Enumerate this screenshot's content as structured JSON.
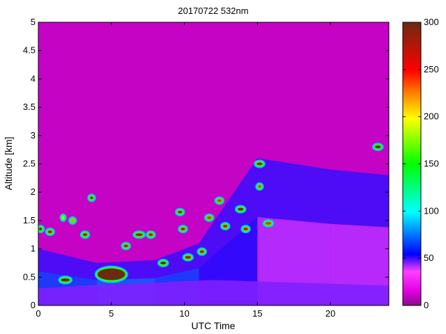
{
  "chart_data": {
    "type": "heatmap",
    "title": "20170722 532nm",
    "xlabel": "UTC Time",
    "ylabel": "Altitude [km]",
    "xlim": [
      0,
      24
    ],
    "ylim": [
      0,
      5
    ],
    "x_ticks": [
      0,
      5,
      10,
      15,
      20
    ],
    "x_tick_labels": [
      "0",
      "5",
      "10",
      "15",
      "20"
    ],
    "y_ticks": [
      0,
      0.5,
      1,
      1.5,
      2,
      2.5,
      3,
      3.5,
      4,
      4.5,
      5
    ],
    "y_tick_labels": [
      "0",
      "0.5",
      "1",
      "1.5",
      "2",
      "2.5",
      "3",
      "3.5",
      "4",
      "4.5",
      "5"
    ],
    "colorbar": {
      "range": [
        0,
        300
      ],
      "ticks": [
        0,
        50,
        100,
        150,
        200,
        250,
        300
      ],
      "tick_labels": [
        "0",
        "50",
        "100",
        "150",
        "200",
        "250",
        "300"
      ],
      "colormap": [
        "#8b0a8b",
        "#e000e0",
        "#ff40ff",
        "#0000ff",
        "#00ffff",
        "#00ff00",
        "#ffff00",
        "#ff8000",
        "#ff0000",
        "#6b2b10"
      ]
    },
    "grid": false,
    "background_level": 10,
    "boundary_layer": [
      {
        "x": 0,
        "top_km": 0.3,
        "value": 45
      },
      {
        "x": 3,
        "top_km": 0.35,
        "value": 45
      },
      {
        "x": 8,
        "top_km": 0.4,
        "value": 40
      },
      {
        "x": 12,
        "top_km": 0.45,
        "value": 35
      },
      {
        "x": 18,
        "top_km": 0.4,
        "value": 40
      },
      {
        "x": 24,
        "top_km": 0.35,
        "value": 40
      }
    ],
    "aerosol_layer": [
      {
        "x": 0,
        "top_km": 1.0,
        "value": 50
      },
      {
        "x": 4,
        "top_km": 0.75,
        "value": 70
      },
      {
        "x": 8,
        "top_km": 0.8,
        "value": 65
      },
      {
        "x": 11,
        "top_km": 1.1,
        "value": 55
      },
      {
        "x": 15,
        "top_km": 2.6,
        "value": 28
      },
      {
        "x": 20,
        "top_km": 2.4,
        "value": 25
      },
      {
        "x": 24,
        "top_km": 2.3,
        "value": 25
      }
    ],
    "cloud_features": [
      {
        "x_start": 0.0,
        "x_end": 0.3,
        "alt_km": 1.35,
        "value": 300
      },
      {
        "x_start": 0.6,
        "x_end": 1.0,
        "alt_km": 1.3,
        "value": 260
      },
      {
        "x_start": 1.5,
        "x_end": 2.2,
        "alt_km": 0.45,
        "value": 300
      },
      {
        "x_start": 1.6,
        "x_end": 1.8,
        "alt_km": 1.55,
        "value": 200
      },
      {
        "x_start": 2.2,
        "x_end": 2.5,
        "alt_km": 1.5,
        "value": 220
      },
      {
        "x_start": 3.0,
        "x_end": 3.4,
        "alt_km": 1.25,
        "value": 280
      },
      {
        "x_start": 3.5,
        "x_end": 3.8,
        "alt_km": 1.9,
        "value": 280
      },
      {
        "x_start": 4.0,
        "x_end": 6.0,
        "alt_km": 0.55,
        "value": 300
      },
      {
        "x_start": 5.8,
        "x_end": 6.2,
        "alt_km": 1.05,
        "value": 260
      },
      {
        "x_start": 6.6,
        "x_end": 7.2,
        "alt_km": 1.25,
        "value": 280
      },
      {
        "x_start": 7.5,
        "x_end": 7.9,
        "alt_km": 1.25,
        "value": 260
      },
      {
        "x_start": 8.3,
        "x_end": 8.8,
        "alt_km": 0.75,
        "value": 300
      },
      {
        "x_start": 9.5,
        "x_end": 9.9,
        "alt_km": 1.65,
        "value": 280
      },
      {
        "x_start": 9.7,
        "x_end": 10.1,
        "alt_km": 1.35,
        "value": 260
      },
      {
        "x_start": 10.0,
        "x_end": 10.5,
        "alt_km": 0.85,
        "value": 280
      },
      {
        "x_start": 11.0,
        "x_end": 11.4,
        "alt_km": 0.95,
        "value": 260
      },
      {
        "x_start": 11.5,
        "x_end": 11.9,
        "alt_km": 1.55,
        "value": 240
      },
      {
        "x_start": 12.2,
        "x_end": 12.6,
        "alt_km": 1.85,
        "value": 240
      },
      {
        "x_start": 12.6,
        "x_end": 13.0,
        "alt_km": 1.4,
        "value": 260
      },
      {
        "x_start": 13.6,
        "x_end": 14.1,
        "alt_km": 1.7,
        "value": 300
      },
      {
        "x_start": 14.0,
        "x_end": 14.4,
        "alt_km": 1.35,
        "value": 260
      },
      {
        "x_start": 14.9,
        "x_end": 15.4,
        "alt_km": 2.5,
        "value": 280
      },
      {
        "x_start": 15.0,
        "x_end": 15.3,
        "alt_km": 2.1,
        "value": 240
      },
      {
        "x_start": 15.5,
        "x_end": 16.0,
        "alt_km": 1.45,
        "value": 240
      },
      {
        "x_start": 23.0,
        "x_end": 23.5,
        "alt_km": 2.8,
        "value": 300
      }
    ]
  }
}
